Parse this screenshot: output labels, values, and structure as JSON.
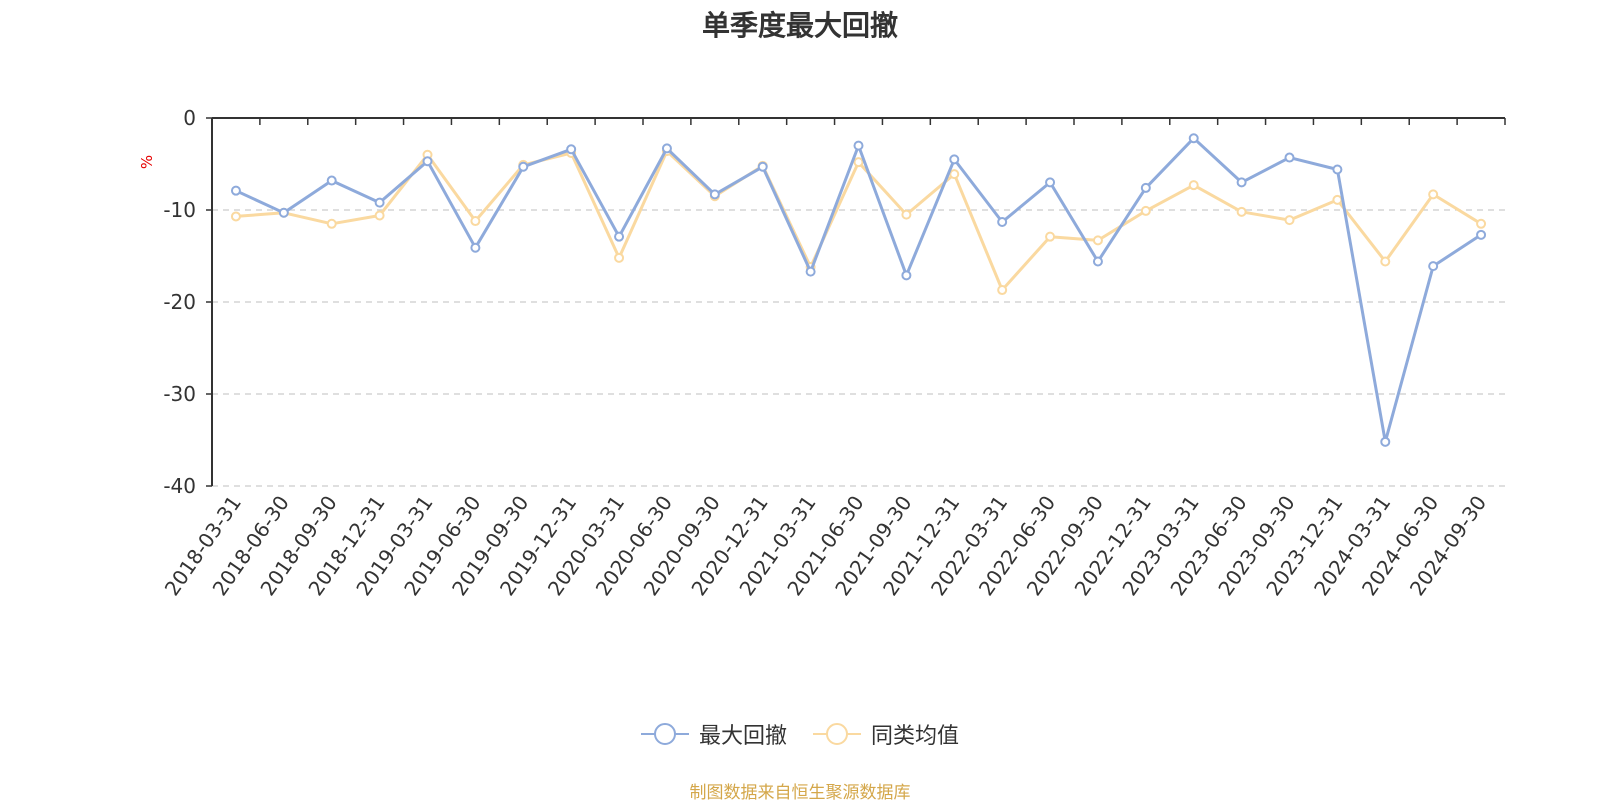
{
  "chart_data": {
    "type": "line",
    "title": "单季度最大回撤",
    "ylabel": "%",
    "ylim": [
      -40,
      0
    ],
    "yticks": [
      0,
      -10,
      -20,
      -30,
      -40
    ],
    "grid": true,
    "legend_position": "bottom-center",
    "categories": [
      "2018-03-31",
      "2018-06-30",
      "2018-09-30",
      "2018-12-31",
      "2019-03-31",
      "2019-06-30",
      "2019-09-30",
      "2019-12-31",
      "2020-03-31",
      "2020-06-30",
      "2020-09-30",
      "2020-12-31",
      "2021-03-31",
      "2021-06-30",
      "2021-09-30",
      "2021-12-31",
      "2022-03-31",
      "2022-06-30",
      "2022-09-30",
      "2022-12-31",
      "2023-03-31",
      "2023-06-30",
      "2023-09-30",
      "2023-12-31",
      "2024-03-31",
      "2024-06-30",
      "2024-09-30"
    ],
    "series": [
      {
        "name": "最大回撤",
        "color": "#8eaadb",
        "values": [
          -7.9,
          -10.3,
          -6.8,
          -9.2,
          -4.7,
          -14.1,
          -5.3,
          -3.4,
          -12.9,
          -3.3,
          -8.3,
          -5.3,
          -16.7,
          -3.0,
          -17.1,
          -4.5,
          -11.3,
          -7.0,
          -15.6,
          -7.6,
          -2.2,
          -7.0,
          -4.3,
          -5.6,
          -35.2,
          -16.1,
          -12.7
        ]
      },
      {
        "name": "同类均值",
        "color": "#fad9a0",
        "values": [
          -10.7,
          -10.3,
          -11.5,
          -10.6,
          -4.0,
          -11.2,
          -5.1,
          -3.8,
          -15.2,
          -3.6,
          -8.5,
          -5.2,
          -16.2,
          -4.8,
          -10.5,
          -6.1,
          -18.7,
          -12.9,
          -13.3,
          -10.1,
          -7.3,
          -10.2,
          -11.1,
          -8.9,
          -15.6,
          -8.3,
          -11.5
        ]
      }
    ]
  },
  "legend": {
    "items": [
      {
        "label": "最大回撤",
        "color": "#8eaadb"
      },
      {
        "label": "同类均值",
        "color": "#fad9a0"
      }
    ]
  },
  "source_note": "制图数据来自恒生聚源数据库"
}
